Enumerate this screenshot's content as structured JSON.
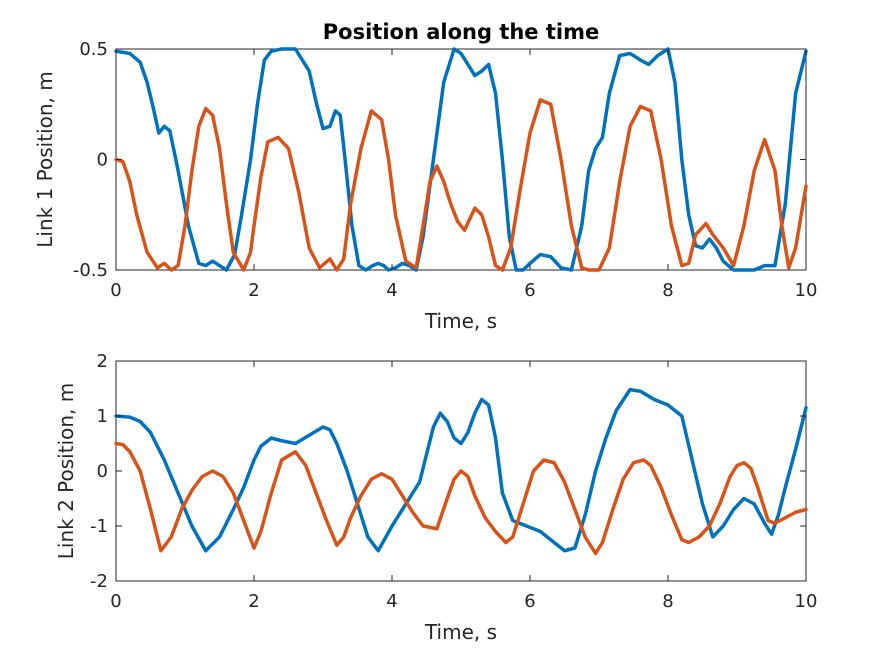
{
  "figure": {
    "title": "Position along the time"
  },
  "chart_data": [
    {
      "type": "line",
      "title": "Position along the time",
      "xlabel": "Time, s",
      "ylabel": "Link 1 Position, m",
      "xlim": [
        0,
        10
      ],
      "ylim": [
        -0.5,
        0.5
      ],
      "xticks": [
        "0",
        "2",
        "4",
        "6",
        "8",
        "10"
      ],
      "yticks": [
        "0.5",
        "0",
        "-0.5"
      ],
      "ytick_values": [
        0.5,
        0,
        -0.5
      ],
      "grid": false,
      "series": [
        {
          "color": "#0072BD",
          "x": [
            0,
            0.2,
            0.35,
            0.45,
            0.55,
            0.62,
            0.7,
            0.78,
            0.9,
            1.05,
            1.2,
            1.3,
            1.4,
            1.5,
            1.6,
            1.72,
            1.82,
            1.95,
            2.05,
            2.15,
            2.25,
            2.4,
            2.6,
            2.8,
            2.9,
            3.0,
            3.1,
            3.18,
            3.25,
            3.32,
            3.42,
            3.52,
            3.62,
            3.72,
            3.8,
            3.88,
            3.95,
            4.05,
            4.15,
            4.25,
            4.35,
            4.45,
            4.6,
            4.75,
            4.9,
            5.0,
            5.1,
            5.2,
            5.3,
            5.4,
            5.5,
            5.6,
            5.7,
            5.8,
            5.9,
            6.0,
            6.15,
            6.3,
            6.45,
            6.6,
            6.75,
            6.85,
            6.95,
            7.05,
            7.15,
            7.3,
            7.45,
            7.6,
            7.72,
            7.85,
            8.0,
            8.1,
            8.2,
            8.3,
            8.4,
            8.5,
            8.6,
            8.7,
            8.8,
            8.95,
            9.1,
            9.25,
            9.4,
            9.55,
            9.7,
            9.85,
            10.0
          ],
          "y": [
            0.49,
            0.48,
            0.44,
            0.35,
            0.22,
            0.12,
            0.15,
            0.13,
            -0.05,
            -0.3,
            -0.47,
            -0.48,
            -0.46,
            -0.48,
            -0.5,
            -0.43,
            -0.25,
            0.0,
            0.25,
            0.45,
            0.49,
            0.5,
            0.5,
            0.4,
            0.26,
            0.14,
            0.15,
            0.22,
            0.2,
            0.0,
            -0.3,
            -0.48,
            -0.5,
            -0.48,
            -0.47,
            -0.48,
            -0.5,
            -0.49,
            -0.47,
            -0.48,
            -0.5,
            -0.35,
            0.0,
            0.35,
            0.5,
            0.48,
            0.43,
            0.38,
            0.4,
            0.43,
            0.3,
            0.0,
            -0.35,
            -0.5,
            -0.5,
            -0.47,
            -0.43,
            -0.44,
            -0.49,
            -0.5,
            -0.3,
            -0.05,
            0.05,
            0.1,
            0.3,
            0.47,
            0.48,
            0.45,
            0.43,
            0.47,
            0.5,
            0.35,
            0.0,
            -0.25,
            -0.39,
            -0.4,
            -0.36,
            -0.4,
            -0.46,
            -0.5,
            -0.5,
            -0.5,
            -0.48,
            -0.48,
            -0.2,
            0.3,
            0.49
          ]
        },
        {
          "color": "#D95319",
          "x": [
            0,
            0.1,
            0.2,
            0.3,
            0.45,
            0.6,
            0.7,
            0.8,
            0.9,
            1.0,
            1.1,
            1.2,
            1.3,
            1.4,
            1.5,
            1.6,
            1.7,
            1.85,
            1.95,
            2.0,
            2.1,
            2.2,
            2.35,
            2.5,
            2.65,
            2.8,
            2.95,
            3.1,
            3.2,
            3.3,
            3.4,
            3.55,
            3.7,
            3.85,
            3.95,
            4.05,
            4.2,
            4.35,
            4.45,
            4.55,
            4.65,
            4.75,
            4.85,
            4.95,
            5.05,
            5.2,
            5.3,
            5.4,
            5.5,
            5.6,
            5.72,
            5.85,
            6.0,
            6.15,
            6.3,
            6.45,
            6.6,
            6.75,
            6.85,
            7.0,
            7.15,
            7.3,
            7.45,
            7.6,
            7.75,
            7.9,
            8.05,
            8.2,
            8.3,
            8.4,
            8.55,
            8.65,
            8.8,
            8.95,
            9.1,
            9.25,
            9.4,
            9.55,
            9.65,
            9.75,
            9.85,
            10.0
          ],
          "y": [
            0.0,
            -0.01,
            -0.1,
            -0.25,
            -0.42,
            -0.49,
            -0.47,
            -0.5,
            -0.48,
            -0.3,
            -0.05,
            0.15,
            0.23,
            0.2,
            0.05,
            -0.2,
            -0.42,
            -0.5,
            -0.42,
            -0.3,
            -0.08,
            0.08,
            0.1,
            0.05,
            -0.15,
            -0.4,
            -0.49,
            -0.45,
            -0.5,
            -0.45,
            -0.2,
            0.05,
            0.22,
            0.18,
            0.0,
            -0.25,
            -0.46,
            -0.49,
            -0.3,
            -0.1,
            -0.03,
            -0.1,
            -0.2,
            -0.28,
            -0.32,
            -0.22,
            -0.25,
            -0.35,
            -0.48,
            -0.5,
            -0.4,
            -0.15,
            0.12,
            0.27,
            0.25,
            0.0,
            -0.3,
            -0.49,
            -0.5,
            -0.5,
            -0.4,
            -0.1,
            0.15,
            0.24,
            0.22,
            0.0,
            -0.3,
            -0.48,
            -0.47,
            -0.34,
            -0.29,
            -0.34,
            -0.4,
            -0.48,
            -0.3,
            -0.05,
            0.09,
            -0.05,
            -0.3,
            -0.49,
            -0.4,
            -0.12
          ]
        }
      ]
    },
    {
      "type": "line",
      "xlabel": "Time, s",
      "ylabel": "Link 2 Position, m",
      "xlim": [
        0,
        10
      ],
      "ylim": [
        -2,
        2
      ],
      "xticks": [
        "0",
        "2",
        "4",
        "6",
        "8",
        "10"
      ],
      "yticks": [
        "2",
        "1",
        "0",
        "-1",
        "-2"
      ],
      "ytick_values": [
        2,
        1,
        0,
        -1,
        -2
      ],
      "grid": false,
      "series": [
        {
          "color": "#0072BD",
          "x": [
            0,
            0.2,
            0.35,
            0.5,
            0.7,
            0.9,
            1.1,
            1.3,
            1.5,
            1.7,
            1.85,
            2.0,
            2.1,
            2.25,
            2.4,
            2.6,
            2.8,
            3.0,
            3.1,
            3.2,
            3.35,
            3.5,
            3.65,
            3.8,
            4.0,
            4.2,
            4.4,
            4.5,
            4.6,
            4.7,
            4.8,
            4.9,
            5.0,
            5.1,
            5.2,
            5.3,
            5.4,
            5.5,
            5.6,
            5.75,
            5.95,
            6.15,
            6.35,
            6.5,
            6.65,
            6.8,
            6.95,
            7.1,
            7.25,
            7.45,
            7.6,
            7.8,
            8.0,
            8.2,
            8.35,
            8.5,
            8.65,
            8.8,
            8.95,
            9.1,
            9.25,
            9.4,
            9.5,
            9.6,
            9.7,
            9.85,
            10.0
          ],
          "y": [
            1.0,
            0.98,
            0.9,
            0.7,
            0.2,
            -0.4,
            -1.0,
            -1.45,
            -1.2,
            -0.7,
            -0.3,
            0.2,
            0.45,
            0.6,
            0.55,
            0.5,
            0.65,
            0.8,
            0.75,
            0.5,
            0.0,
            -0.6,
            -1.2,
            -1.45,
            -1.0,
            -0.6,
            -0.2,
            0.3,
            0.8,
            1.05,
            0.9,
            0.6,
            0.5,
            0.7,
            1.05,
            1.3,
            1.2,
            0.6,
            -0.4,
            -0.9,
            -1.0,
            -1.1,
            -1.3,
            -1.45,
            -1.4,
            -0.8,
            0.0,
            0.6,
            1.1,
            1.48,
            1.45,
            1.3,
            1.2,
            1.0,
            0.2,
            -0.6,
            -1.2,
            -1.0,
            -0.7,
            -0.5,
            -0.6,
            -0.95,
            -1.15,
            -0.8,
            -0.3,
            0.4,
            1.15
          ]
        },
        {
          "color": "#D95319",
          "x": [
            0,
            0.1,
            0.2,
            0.35,
            0.5,
            0.65,
            0.8,
            0.95,
            1.1,
            1.25,
            1.4,
            1.55,
            1.7,
            1.85,
            2.0,
            2.1,
            2.25,
            2.4,
            2.6,
            2.75,
            2.9,
            3.05,
            3.2,
            3.3,
            3.4,
            3.55,
            3.7,
            3.85,
            4.0,
            4.15,
            4.3,
            4.45,
            4.65,
            4.8,
            4.9,
            5.0,
            5.1,
            5.2,
            5.35,
            5.5,
            5.65,
            5.75,
            5.9,
            6.05,
            6.2,
            6.35,
            6.5,
            6.65,
            6.8,
            6.95,
            7.05,
            7.2,
            7.35,
            7.5,
            7.65,
            7.75,
            7.9,
            8.05,
            8.2,
            8.3,
            8.45,
            8.6,
            8.75,
            8.9,
            9.0,
            9.1,
            9.2,
            9.3,
            9.45,
            9.55,
            9.7,
            9.85,
            10.0
          ],
          "y": [
            0.5,
            0.48,
            0.35,
            0.0,
            -0.7,
            -1.45,
            -1.2,
            -0.7,
            -0.35,
            -0.1,
            0.0,
            -0.1,
            -0.4,
            -0.9,
            -1.4,
            -1.1,
            -0.4,
            0.2,
            0.35,
            0.1,
            -0.4,
            -0.9,
            -1.35,
            -1.2,
            -0.85,
            -0.45,
            -0.15,
            -0.05,
            -0.15,
            -0.45,
            -0.75,
            -1.0,
            -1.05,
            -0.5,
            -0.15,
            0.0,
            -0.1,
            -0.45,
            -0.85,
            -1.1,
            -1.3,
            -1.2,
            -0.6,
            0.0,
            0.2,
            0.15,
            -0.2,
            -0.7,
            -1.2,
            -1.5,
            -1.3,
            -0.7,
            -0.15,
            0.15,
            0.2,
            0.1,
            -0.3,
            -0.8,
            -1.25,
            -1.3,
            -1.2,
            -1.0,
            -0.6,
            -0.1,
            0.1,
            0.15,
            0.05,
            -0.3,
            -0.9,
            -0.95,
            -0.85,
            -0.75,
            -0.7
          ]
        }
      ]
    }
  ]
}
